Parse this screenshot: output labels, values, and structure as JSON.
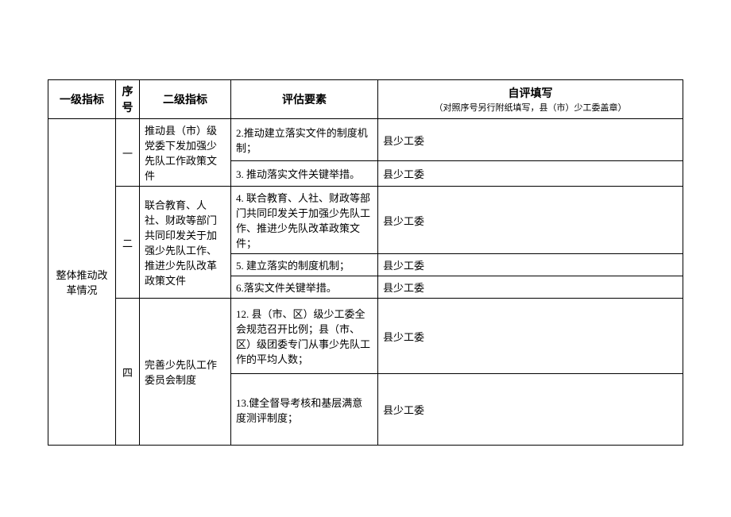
{
  "headers": {
    "level1": "一级指标",
    "seq": "序号",
    "level2": "二级指标",
    "assess": "评估要素",
    "self_title": "自评填写",
    "self_subtitle": "（对照序号另行附纸填写，县（市）少工委盖章）"
  },
  "level1_label": "整体推动改革情况",
  "rows": [
    {
      "seq": "一",
      "level2": "推动县（市）级党委下发加强少先队工作政策文件",
      "items": [
        {
          "assess": "2.推动建立落实文件的制度机制；",
          "self": "县少工委"
        },
        {
          "assess": "3. 推动落实文件关键举措。",
          "self": "县少工委"
        }
      ]
    },
    {
      "seq": "二",
      "level2": "联合教育、人社、财政等部门共同印发关于加强少先队工作、推进少先队改革政策文件",
      "items": [
        {
          "assess": "4. 联合教育、人社、财政等部门共同印发关于加强少先队工作、推进少先队改革政策文件；",
          "self": "县少工委"
        },
        {
          "assess": "5. 建立落实的制度机制；",
          "self": "县少工委"
        },
        {
          "assess": "6.落实文件关键举措。",
          "self": "县少工委"
        }
      ]
    },
    {
      "seq": "四",
      "level2": "完善少先队工作委员会制度",
      "items": [
        {
          "assess": "12. 县（市、区）级少工委全会规范召开比例；县（市、区）级团委专门从事少先队工作的平均人数；",
          "self": "县少工委"
        },
        {
          "assess": "13.健全督导考核和基层满意度测评制度；",
          "self": "县少工委"
        }
      ]
    }
  ]
}
